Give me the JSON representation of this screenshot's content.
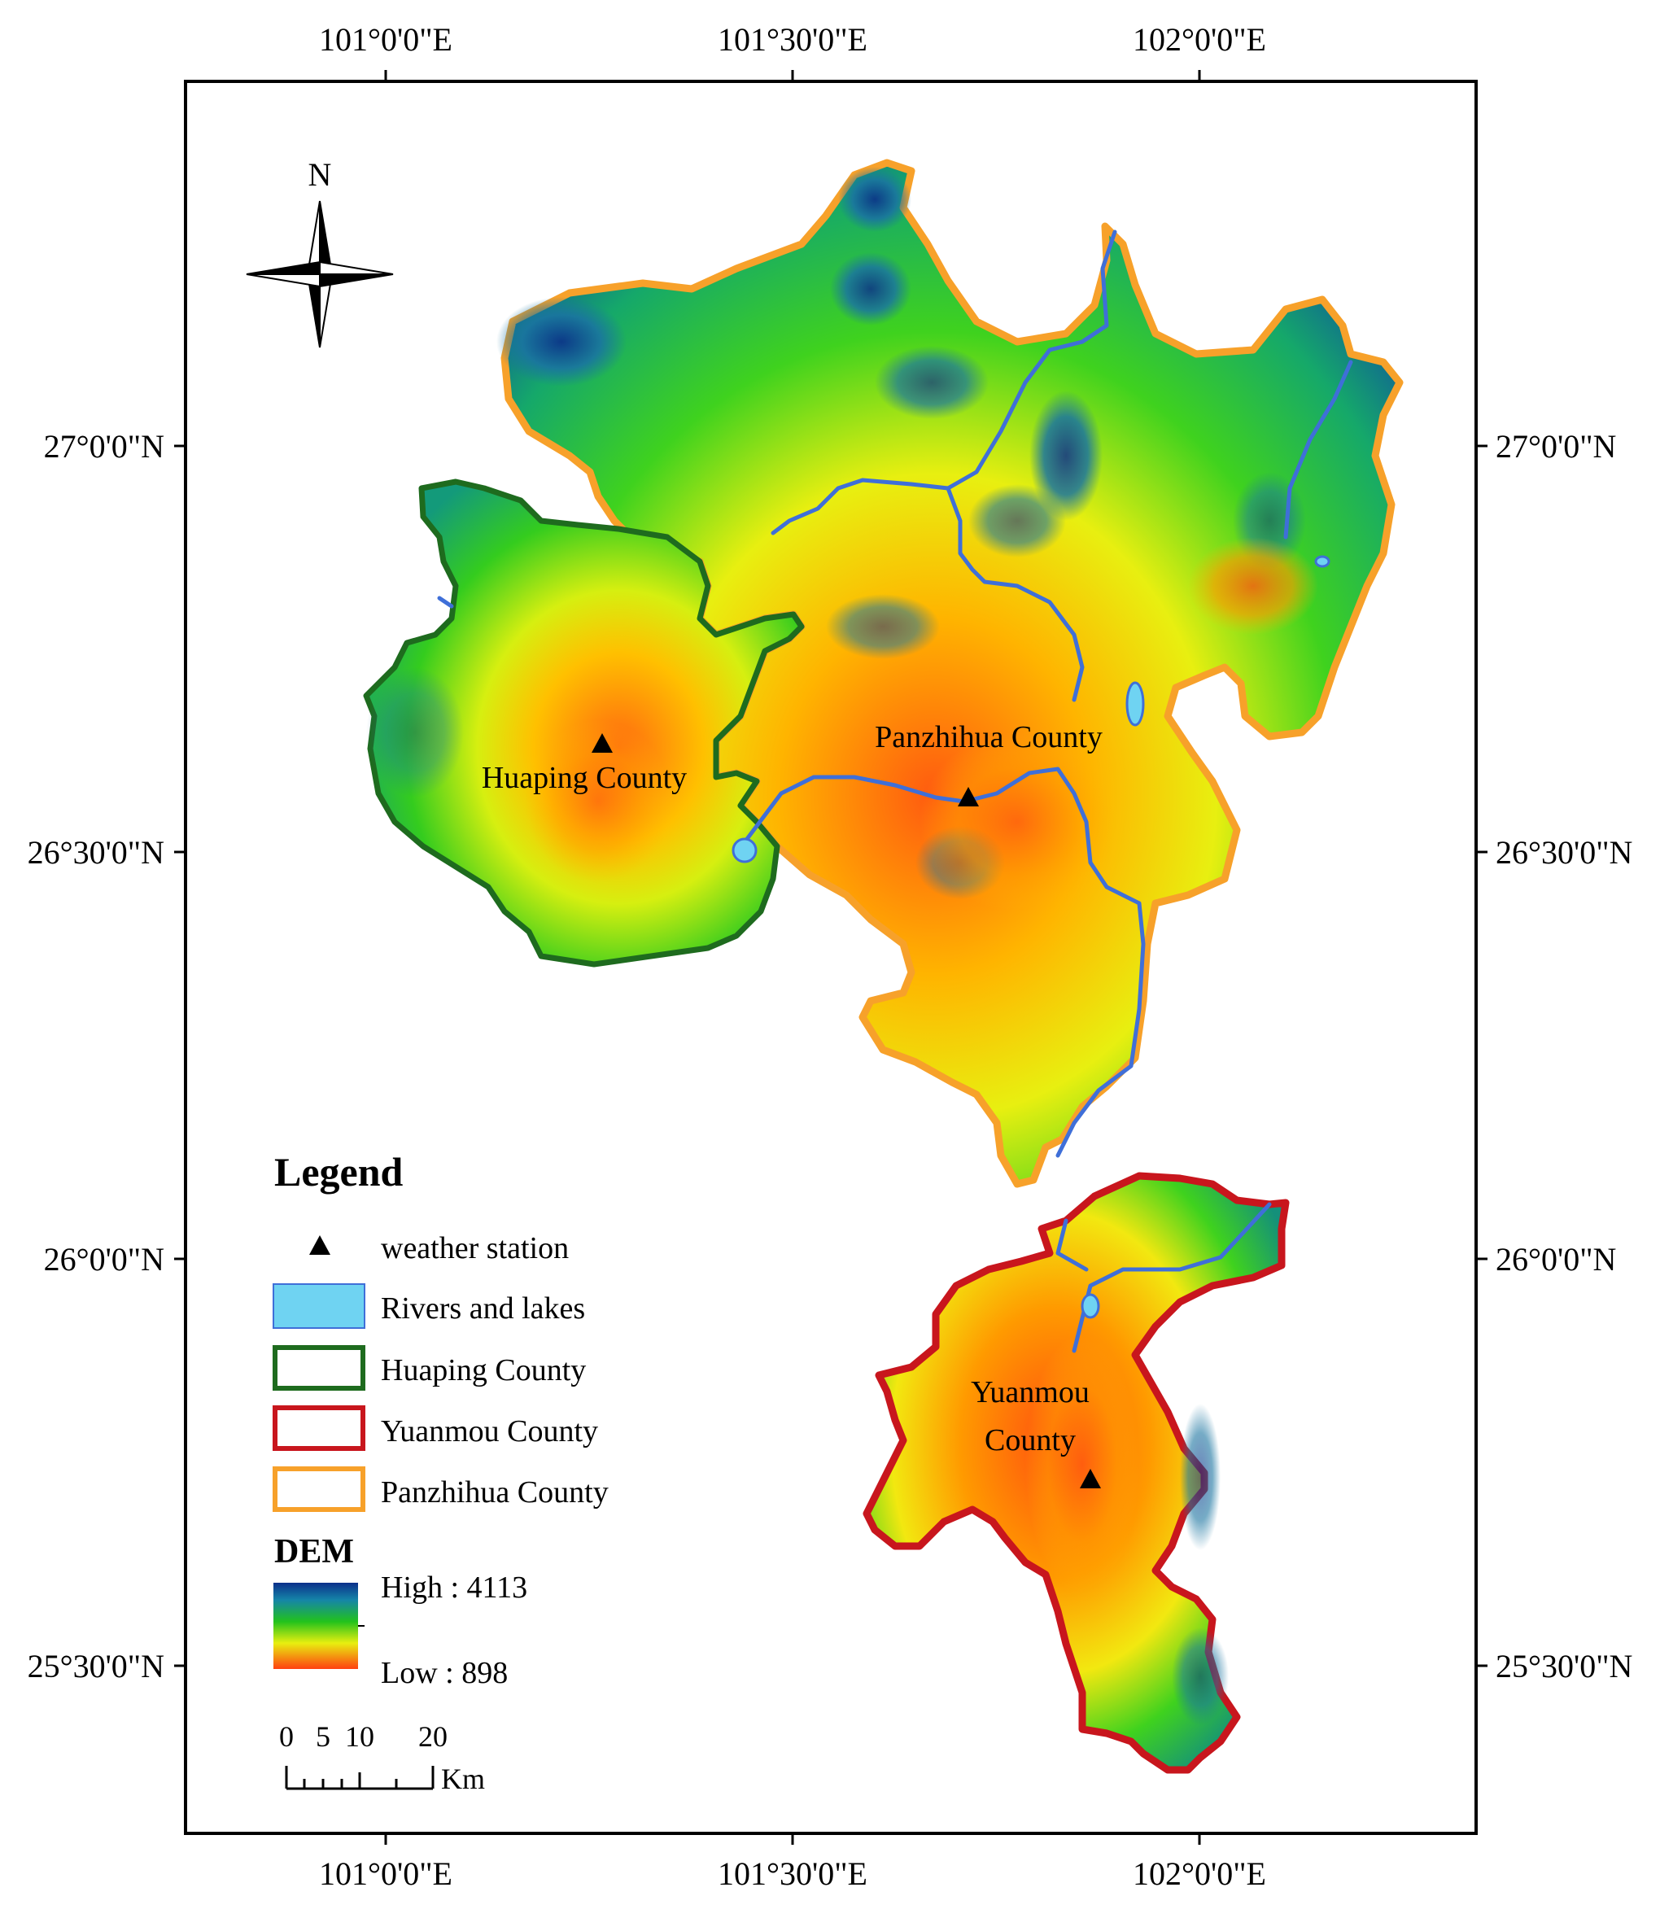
{
  "axes": {
    "longitude_ticks": [
      "101°0'0\"E",
      "101°30'0\"E",
      "102°0'0\"E"
    ],
    "latitude_ticks": [
      "27°0'0\"N",
      "26°30'0\"N",
      "26°0'0\"N",
      "25°30'0\"N"
    ]
  },
  "north_arrow": {
    "label": "N",
    "icon": "compass-rose-icon"
  },
  "counties": {
    "huaping": {
      "label": "Huaping County",
      "border_color": "#1e6b1e"
    },
    "panzhihua": {
      "label": "Panzhihua County",
      "border_color": "#f7a12a"
    },
    "yuanmou": {
      "label_line1": "Yuanmou",
      "label_line2": "County",
      "border_color": "#c8161d"
    }
  },
  "legend": {
    "title": "Legend",
    "items": [
      {
        "label": "weather station",
        "icon": "triangle-icon"
      },
      {
        "label": "Rivers and lakes",
        "color": "#6fd3f2"
      },
      {
        "label": "Huaping County",
        "color": "#1e6b1e"
      },
      {
        "label": "Yuanmou County",
        "color": "#c8161d"
      },
      {
        "label": "Panzhihua County",
        "color": "#f7a12a"
      }
    ],
    "dem": {
      "title": "DEM",
      "high_label": "High : 4113",
      "low_label": "Low : 898",
      "high": 4113,
      "low": 898
    }
  },
  "scale_bar": {
    "ticks": [
      "0",
      "5",
      "10",
      "20"
    ],
    "unit": "Km"
  },
  "colors": {
    "river": "#3f6fd8",
    "dem_high": "#0b2f8a",
    "dem_mid": "#22c21c",
    "dem_low": "#ff5a10"
  }
}
